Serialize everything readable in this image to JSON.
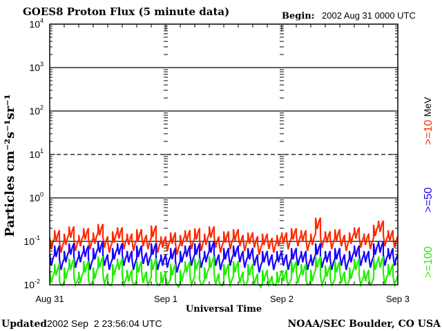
{
  "chart_data": {
    "type": "line",
    "title": "GOES8 Proton Flux (5 minute data)",
    "begin_label": "Begin:",
    "begin_value": "2002 Aug 31 0000 UTC",
    "xlabel": "Universal Time",
    "ylabel": "Particles cm⁻²s⁻¹sr⁻¹",
    "y_scale": "log",
    "ylim": [
      0.01,
      10000
    ],
    "y_ticks": [
      {
        "base": "10",
        "exp": "4",
        "value": 10000
      },
      {
        "base": "10",
        "exp": "3",
        "value": 1000
      },
      {
        "base": "10",
        "exp": "2",
        "value": 100
      },
      {
        "base": "10",
        "exp": "1",
        "value": 10
      },
      {
        "base": "10",
        "exp": "0",
        "value": 1
      },
      {
        "base": "10",
        "exp": "-1",
        "value": 0.1
      },
      {
        "base": "10",
        "exp": "-2",
        "value": 0.01
      }
    ],
    "x_ticks": [
      "Aug 31",
      "Sep 1",
      "Sep 2",
      "Sep 3"
    ],
    "x_range_hours": [
      0,
      72
    ],
    "grid": {
      "solid": [
        1000,
        100,
        1,
        0.1
      ],
      "dashed": [
        10
      ]
    },
    "unit_label": "MeV",
    "series": [
      {
        "name": ">=10",
        "color": "#ff2a00",
        "values": [
          0.12,
          0.18,
          0.1,
          0.15,
          0.22,
          0.11,
          0.14,
          0.2,
          0.12,
          0.16,
          0.25,
          0.13,
          0.1,
          0.17,
          0.21,
          0.12,
          0.15,
          0.11,
          0.19,
          0.14,
          0.12,
          0.23,
          0.1,
          0.13,
          0.11,
          0.16,
          0.09,
          0.14,
          0.18,
          0.12,
          0.2,
          0.11,
          0.15,
          0.22,
          0.13,
          0.1,
          0.17,
          0.12,
          0.19,
          0.14,
          0.11,
          0.16,
          0.13,
          0.09,
          0.15,
          0.12,
          0.1,
          0.14,
          0.16,
          0.12,
          0.2,
          0.14,
          0.18,
          0.11,
          0.15,
          0.35,
          0.13,
          0.17,
          0.12,
          0.19,
          0.14,
          0.11,
          0.16,
          0.21,
          0.13,
          0.15,
          0.12,
          0.24,
          0.3,
          0.14,
          0.18,
          0.13
        ]
      },
      {
        "name": ">=50",
        "color": "#1a00ff",
        "values": [
          0.05,
          0.08,
          0.04,
          0.06,
          0.09,
          0.045,
          0.06,
          0.08,
          0.04,
          0.07,
          0.1,
          0.05,
          0.04,
          0.07,
          0.09,
          0.05,
          0.06,
          0.04,
          0.08,
          0.055,
          0.05,
          0.09,
          0.04,
          0.05,
          0.045,
          0.07,
          0.035,
          0.06,
          0.08,
          0.05,
          0.09,
          0.045,
          0.06,
          0.1,
          0.05,
          0.04,
          0.07,
          0.05,
          0.08,
          0.06,
          0.045,
          0.07,
          0.05,
          0.035,
          0.06,
          0.05,
          0.04,
          0.06,
          0.05,
          0.04,
          0.07,
          0.05,
          0.06,
          0.04,
          0.05,
          0.09,
          0.045,
          0.06,
          0.04,
          0.07,
          0.05,
          0.04,
          0.06,
          0.08,
          0.05,
          0.06,
          0.045,
          0.09,
          0.1,
          0.05,
          0.07,
          0.05
        ]
      },
      {
        "name": ">=100",
        "color": "#22ee00",
        "values": [
          0.02,
          0.03,
          0.012,
          0.025,
          0.04,
          0.015,
          0.02,
          0.035,
          0.013,
          0.025,
          0.045,
          0.018,
          0.012,
          0.03,
          0.04,
          0.016,
          0.022,
          0.013,
          0.035,
          0.02,
          0.015,
          0.04,
          0.012,
          0.02,
          0.014,
          0.03,
          0.011,
          0.022,
          0.035,
          0.016,
          0.04,
          0.013,
          0.025,
          0.045,
          0.018,
          0.012,
          0.03,
          0.016,
          0.035,
          0.02,
          0.013,
          0.03,
          0.018,
          0.011,
          0.022,
          0.016,
          0.012,
          0.02,
          0.022,
          0.014,
          0.035,
          0.02,
          0.03,
          0.013,
          0.022,
          0.045,
          0.016,
          0.028,
          0.014,
          0.035,
          0.02,
          0.013,
          0.025,
          0.04,
          0.016,
          0.022,
          0.014,
          0.04,
          0.045,
          0.018,
          0.03,
          0.016
        ]
      }
    ]
  },
  "footer": {
    "updated_label": "Updated",
    "updated_value": "2002 Sep  2 23:56:04 UTC",
    "credit": "NOAA/SEC Boulder, CO USA"
  }
}
